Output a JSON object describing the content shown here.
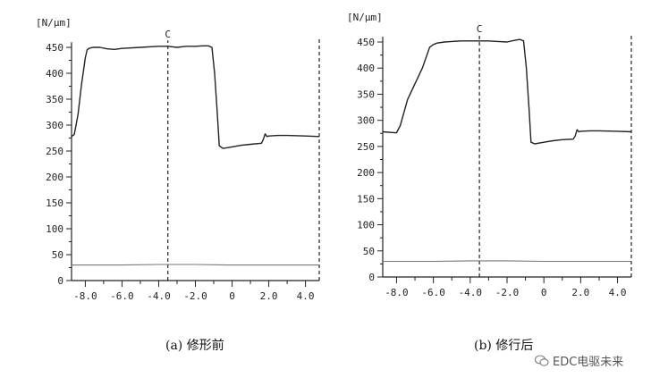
{
  "chart_data": [
    {
      "type": "line",
      "ylabel": "[N/µm]",
      "caption": "(a) 修形前",
      "marker_label": "C",
      "marker_x": -3.5,
      "xlim": [
        -8.75,
        4.75
      ],
      "ylim": [
        0,
        460
      ],
      "xticks": [
        -8.0,
        -6.0,
        -4.0,
        -2.0,
        0,
        2.0,
        4.0
      ],
      "xtick_labels": [
        "-8.0",
        "-6.0",
        "-4.0",
        "-2.0",
        "0",
        "2.0",
        "4.0"
      ],
      "yticks": [
        0,
        50,
        100,
        150,
        200,
        250,
        300,
        350,
        400,
        450
      ],
      "ytick_labels": [
        "0",
        "50",
        "100",
        "150",
        "200",
        "250",
        "300",
        "350",
        "400",
        "450"
      ],
      "series": [
        {
          "x": [
            -8.75,
            -8.6,
            -8.4,
            -8.2,
            -8.0,
            -7.9,
            -7.8,
            -7.6,
            -7.2,
            -6.8,
            -6.4,
            -6.0,
            -5.0,
            -4.0,
            -3.5,
            -3.0,
            -2.5,
            -2.0,
            -1.6,
            -1.3,
            -1.1,
            -0.95,
            -0.8,
            -0.7,
            -0.5,
            0.0,
            0.5,
            1.0,
            1.6,
            1.7,
            1.8,
            1.9,
            2.0,
            2.5,
            3.0,
            4.0,
            4.75
          ],
          "y": [
            278,
            282,
            320,
            380,
            430,
            445,
            448,
            450,
            450,
            447,
            446,
            448,
            450,
            452,
            452,
            450,
            452,
            452,
            453,
            453,
            450,
            400,
            320,
            260,
            255,
            258,
            261,
            263,
            265,
            272,
            283,
            278,
            279,
            280,
            280,
            279,
            278
          ]
        },
        {
          "x": [
            -8.75,
            -6.0,
            -4.0,
            -2.0,
            0.0,
            2.0,
            4.75
          ],
          "y": [
            30,
            30,
            31,
            31,
            30,
            30,
            30
          ]
        }
      ]
    },
    {
      "type": "line",
      "ylabel": "[N/µm]",
      "caption": "(b) 修行后",
      "marker_label": "C",
      "marker_x": -3.5,
      "xlim": [
        -8.75,
        4.75
      ],
      "ylim": [
        0,
        460
      ],
      "xticks": [
        -8.0,
        -6.0,
        -4.0,
        -2.0,
        0,
        2.0,
        4.0
      ],
      "xtick_labels": [
        "-8.0",
        "-6.0",
        "-4.0",
        "-2.0",
        "0",
        "2.0",
        "4.0"
      ],
      "yticks": [
        0,
        50,
        100,
        150,
        200,
        250,
        300,
        350,
        400,
        450
      ],
      "ytick_labels": [
        "0",
        "50",
        "100",
        "150",
        "200",
        "250",
        "300",
        "350",
        "400",
        "450"
      ],
      "series": [
        {
          "x": [
            -8.75,
            -8.0,
            -7.8,
            -7.4,
            -7.0,
            -6.6,
            -6.2,
            -6.0,
            -5.8,
            -5.4,
            -5.0,
            -4.5,
            -4.0,
            -3.5,
            -3.0,
            -2.5,
            -2.0,
            -1.6,
            -1.3,
            -1.1,
            -0.95,
            -0.8,
            -0.7,
            -0.5,
            0.0,
            0.5,
            1.0,
            1.6,
            1.7,
            1.8,
            1.9,
            2.0,
            2.5,
            3.0,
            4.0,
            4.75
          ],
          "y": [
            278,
            276,
            290,
            340,
            370,
            400,
            440,
            445,
            448,
            450,
            451,
            452,
            452,
            452,
            452,
            451,
            450,
            453,
            455,
            452,
            400,
            320,
            258,
            255,
            258,
            261,
            263,
            264,
            270,
            282,
            278,
            279,
            280,
            280,
            279,
            278
          ]
        },
        {
          "x": [
            -8.75,
            -6.0,
            -4.0,
            -2.0,
            0.0,
            2.0,
            4.75
          ],
          "y": [
            30,
            30,
            31,
            31,
            30,
            30,
            30
          ]
        }
      ]
    }
  ],
  "captions": {
    "a": "(a) 修形前",
    "b": "(b) 修行后"
  },
  "watermark": {
    "text": "EDC电驱未来",
    "icon": "wechat-icon"
  }
}
